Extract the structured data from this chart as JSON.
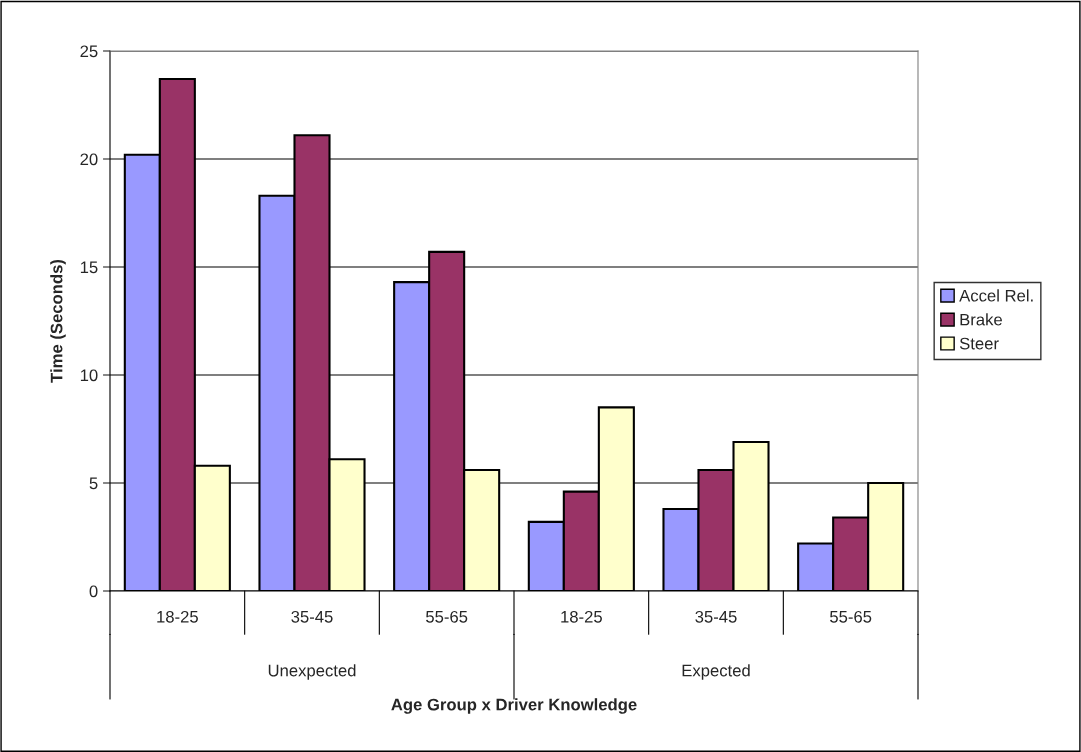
{
  "chart_data": {
    "type": "bar",
    "xlabel": "Age Group x Driver Knowledge",
    "ylabel": "Time (Seconds)",
    "categories": [
      "18-25",
      "35-45",
      "55-65",
      "18-25",
      "35-45",
      "55-65"
    ],
    "annotations": [
      "Unexpected",
      "Expected"
    ],
    "series": [
      {
        "name": "Accel Rel.",
        "color": "#9999ff",
        "values": [
          20.2,
          18.3,
          14.3,
          3.2,
          3.8,
          2.2
        ]
      },
      {
        "name": "Brake",
        "color": "#993366",
        "values": [
          23.7,
          21.1,
          15.7,
          4.6,
          5.6,
          3.4
        ]
      },
      {
        "name": "Steer",
        "color": "#ffffcc",
        "values": [
          5.8,
          6.1,
          5.6,
          8.5,
          6.9,
          5.0
        ]
      }
    ],
    "ylim": [
      0,
      25
    ],
    "yticks": [
      0,
      5,
      10,
      15,
      20,
      25
    ],
    "grid": "y",
    "legend": "right"
  }
}
